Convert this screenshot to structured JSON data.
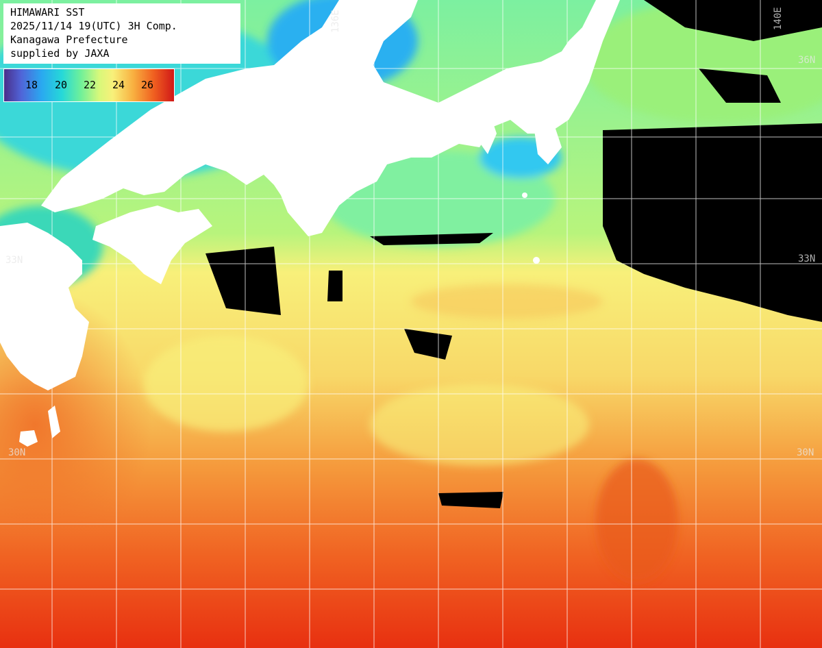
{
  "title_lines": [
    "HIMAWARI SST",
    "2025/11/14 19(UTC) 3H Comp.",
    "Kanagawa Prefecture",
    "supplied by JAXA"
  ],
  "legend": {
    "ticks": [
      "18",
      "20",
      "22",
      "24",
      "26"
    ]
  },
  "grid_labels": {
    "lon_136": "136E",
    "lon_140": "140E",
    "lat_36": "36N",
    "lat_33": "33N",
    "lat_30_left": "30N",
    "lat_30_right": "30N"
  },
  "colors": {
    "land": "#ffffff",
    "no_data": "#000000",
    "grid": "#ffffff",
    "sst_cold": "#2aa8f0",
    "sst_mid": "#f8f07a",
    "sst_warm": "#e83010"
  }
}
